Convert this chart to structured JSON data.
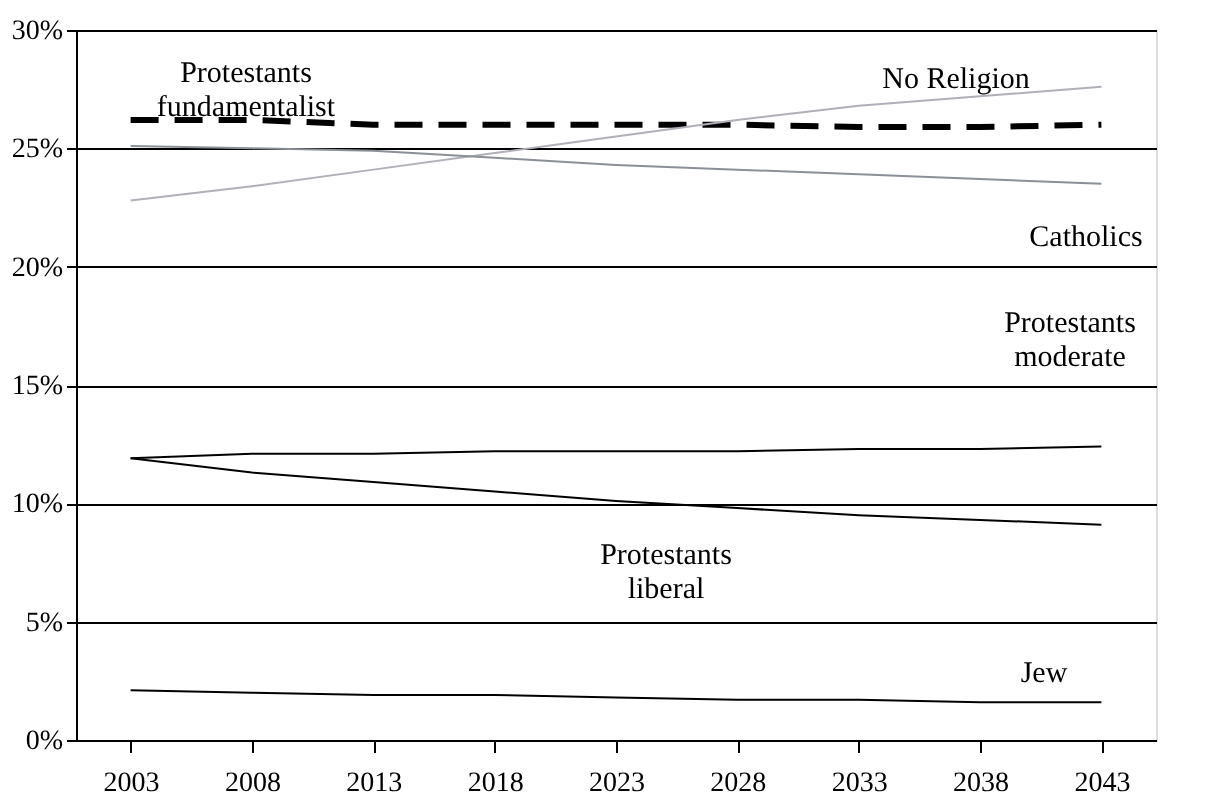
{
  "chart_data": {
    "type": "line",
    "categories": [
      "2003",
      "2008",
      "2013",
      "2018",
      "2023",
      "2028",
      "2033",
      "2038",
      "2043"
    ],
    "series": [
      {
        "name": "Protestants fundamentalist",
        "color": "#000000",
        "line_style": "dashed",
        "values": [
          26.2,
          26.2,
          26.0,
          26.0,
          26.0,
          26.0,
          25.9,
          25.9,
          26.0
        ]
      },
      {
        "name": "No Religion",
        "color": "#b0b0b8",
        "line_style": "solid",
        "values": [
          22.8,
          23.4,
          24.1,
          24.8,
          25.5,
          26.2,
          26.8,
          27.2,
          27.6
        ]
      },
      {
        "name": "Catholics",
        "color": "#8a9096",
        "line_style": "solid",
        "values": [
          25.1,
          25.0,
          24.9,
          24.6,
          24.3,
          24.1,
          23.9,
          23.7,
          23.5
        ]
      },
      {
        "name": "Protestants moderate",
        "color": "#000000",
        "line_style": "solid",
        "values": [
          11.9,
          12.1,
          12.1,
          12.2,
          12.2,
          12.2,
          12.3,
          12.3,
          12.4
        ]
      },
      {
        "name": "Protestants liberal",
        "color": "#000000",
        "line_style": "solid",
        "values": [
          11.9,
          11.3,
          10.9,
          10.5,
          10.1,
          9.8,
          9.5,
          9.3,
          9.1
        ]
      },
      {
        "name": "Jew",
        "color": "#000000",
        "line_style": "solid",
        "values": [
          2.1,
          2.0,
          1.9,
          1.9,
          1.8,
          1.7,
          1.7,
          1.6,
          1.6
        ]
      }
    ],
    "ylim": [
      0,
      30
    ],
    "yticks": [
      {
        "value": 0,
        "label": "0%"
      },
      {
        "value": 5,
        "label": "5%"
      },
      {
        "value": 10,
        "label": "10%"
      },
      {
        "value": 15,
        "label": "15%"
      },
      {
        "value": 20,
        "label": "20%"
      },
      {
        "value": 25,
        "label": "25%"
      },
      {
        "value": 30,
        "label": "30%"
      }
    ],
    "grid": "y",
    "marker": "none"
  }
}
